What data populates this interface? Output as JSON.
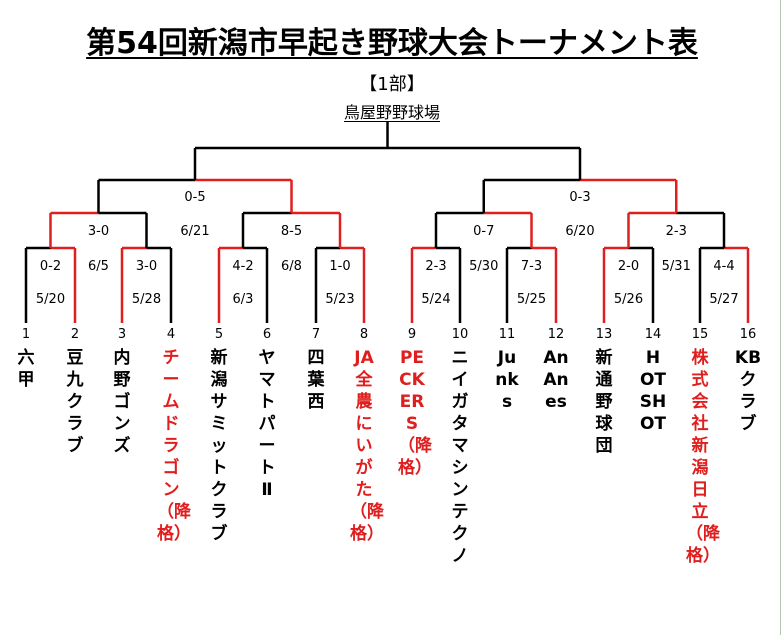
{
  "title": "第54回新潟市早起き野球大会トーナメント表",
  "division": "【1部】",
  "venue": "鳥屋野野球場",
  "colors": {
    "winner": "#e01e1e",
    "line": "#000000"
  },
  "final": {
    "score": "",
    "date": ""
  },
  "semifinals": [
    {
      "score": "0-5",
      "date": "6/21"
    },
    {
      "score": "0-3",
      "date": "6/20"
    }
  ],
  "quarterfinals": [
    {
      "score": "3-0",
      "date": "6/5"
    },
    {
      "score": "8-5",
      "date": "6/8"
    },
    {
      "score": "0-7",
      "date": "5/30"
    },
    {
      "score": "2-3",
      "date": "5/31"
    }
  ],
  "first_round": [
    {
      "score": "0-2",
      "date": "5/20"
    },
    {
      "score": "3-0",
      "date": "5/28"
    },
    {
      "score": "4-2",
      "date": "6/3"
    },
    {
      "score": "1-0",
      "date": "5/23"
    },
    {
      "score": "2-3",
      "date": "5/24"
    },
    {
      "score": "7-3",
      "date": "5/25"
    },
    {
      "score": "2-0",
      "date": "5/26"
    },
    {
      "score": "4-4",
      "date": "5/27"
    }
  ],
  "teams": [
    {
      "no": "1",
      "name": "六甲",
      "relegated": false
    },
    {
      "no": "2",
      "name": "豆九クラブ",
      "relegated": false
    },
    {
      "no": "3",
      "name": "内野ゴンズ",
      "relegated": false
    },
    {
      "no": "4",
      "name": "チームドラゴン（降格）",
      "relegated": true
    },
    {
      "no": "5",
      "name": "新潟サミットクラブ",
      "relegated": false
    },
    {
      "no": "6",
      "name": "ヤマトパートⅡ",
      "relegated": false
    },
    {
      "no": "7",
      "name": "四葉西",
      "relegated": false
    },
    {
      "no": "8",
      "name": "JA全農にいがた（降格）",
      "relegated": true
    },
    {
      "no": "9",
      "name": "PECKERS（降格）",
      "relegated": true
    },
    {
      "no": "10",
      "name": "ニイガタマシンテクノ",
      "relegated": false
    },
    {
      "no": "11",
      "name": "Junks",
      "relegated": false
    },
    {
      "no": "12",
      "name": "AnAnes",
      "relegated": false
    },
    {
      "no": "13",
      "name": "新通野球団",
      "relegated": false
    },
    {
      "no": "14",
      "name": "HOT SHOT",
      "relegated": false
    },
    {
      "no": "15",
      "name": "株式会社新潟日立（降格）",
      "relegated": true
    },
    {
      "no": "16",
      "name": "KBクラブ",
      "relegated": false
    }
  ]
}
